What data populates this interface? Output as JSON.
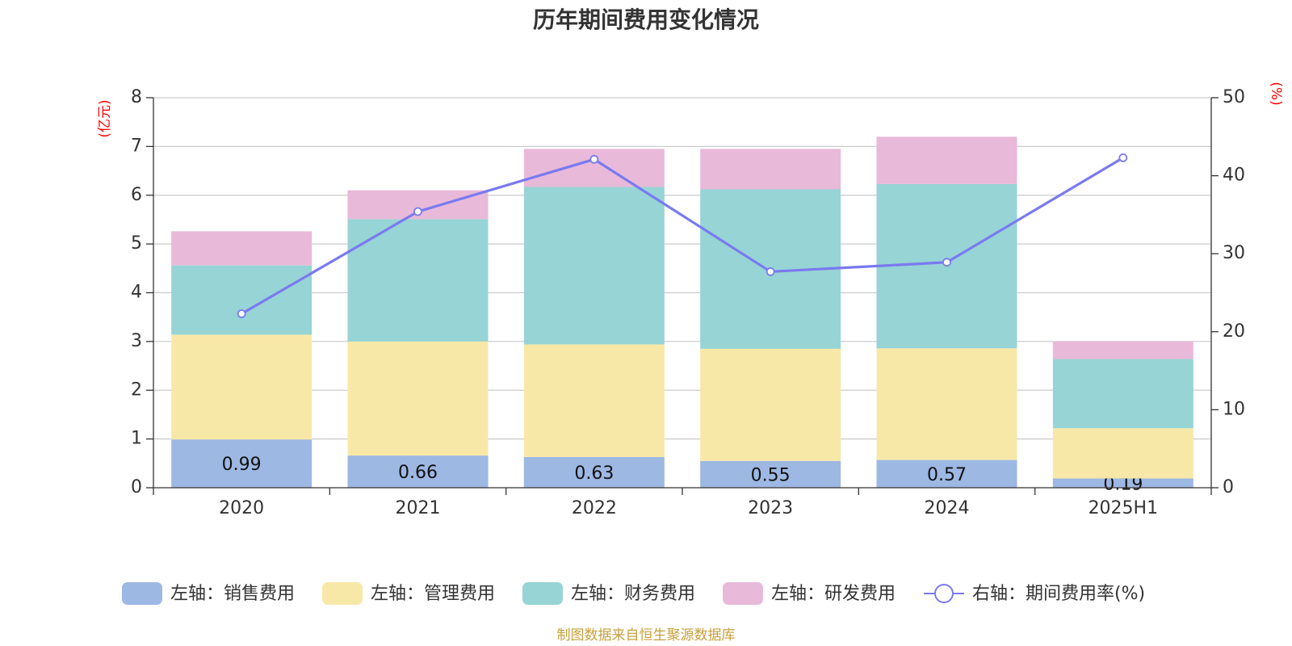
{
  "chart_data": {
    "type": "bar",
    "title": "历年期间费用变化情况",
    "categories": [
      "2020",
      "2021",
      "2022",
      "2023",
      "2024",
      "2025H1"
    ],
    "left_axis": {
      "unit": "(亿元)",
      "ylim": [
        0,
        8
      ],
      "ticks": [
        "0",
        "1",
        "2",
        "3",
        "4",
        "5",
        "6",
        "7",
        "8"
      ]
    },
    "right_axis": {
      "unit": "(%)",
      "ylim": [
        0,
        50
      ],
      "ticks": [
        "0",
        "10",
        "20",
        "30",
        "40",
        "50"
      ]
    },
    "stacked": true,
    "series": [
      {
        "name": "左轴：销售费用",
        "color": "#9db8e2",
        "values": [
          0.99,
          0.66,
          0.63,
          0.55,
          0.57,
          0.19
        ],
        "labels": [
          "0.99",
          "0.66",
          "0.63",
          "0.55",
          "0.57",
          "0.19"
        ]
      },
      {
        "name": "左轴：管理费用",
        "color": "#f8e8a8",
        "values": [
          2.15,
          2.34,
          2.31,
          2.3,
          2.29,
          1.03
        ]
      },
      {
        "name": "左轴：财务费用",
        "color": "#97d4d5",
        "values": [
          1.42,
          2.51,
          3.23,
          3.27,
          3.37,
          1.42
        ]
      },
      {
        "name": "左轴：研发费用",
        "color": "#e8b9d9",
        "values": [
          0.7,
          0.59,
          0.78,
          0.83,
          0.97,
          0.36
        ]
      }
    ],
    "line": {
      "name": "右轴：期间费用率(%)",
      "color": "#7a7af0",
      "values": [
        22.3,
        35.4,
        42.1,
        27.7,
        28.9,
        42.3
      ]
    },
    "grid": true,
    "legend_position": "bottom"
  },
  "source": "制图数据来自恒生聚源数据库"
}
